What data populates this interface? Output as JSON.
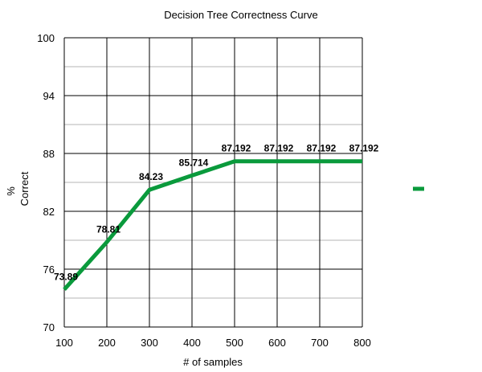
{
  "chart_data": {
    "type": "line",
    "title": "Decision Tree Correctness Curve",
    "xlabel": "# of samples",
    "ylabel_line1": "%",
    "ylabel_line2": "Correct",
    "xlim": [
      100,
      800
    ],
    "ylim": [
      70,
      100
    ],
    "x_ticks": [
      100,
      200,
      300,
      400,
      500,
      600,
      700,
      800
    ],
    "y_ticks": [
      70,
      76,
      82,
      88,
      94,
      100
    ],
    "grid": true,
    "legend": "right",
    "series": [
      {
        "color": "#0a9a3c",
        "points": [
          {
            "x": 100,
            "y": 73.89,
            "label": "73.89"
          },
          {
            "x": 200,
            "y": 78.81,
            "label": "78.81"
          },
          {
            "x": 300,
            "y": 84.23,
            "label": "84.23"
          },
          {
            "x": 400,
            "y": 85.714,
            "label": "85.714"
          },
          {
            "x": 500,
            "y": 87.192,
            "label": "87.192"
          },
          {
            "x": 600,
            "y": 87.192,
            "label": "87.192"
          },
          {
            "x": 700,
            "y": 87.192,
            "label": "87.192"
          },
          {
            "x": 800,
            "y": 87.192,
            "label": "87.192"
          }
        ]
      }
    ]
  }
}
